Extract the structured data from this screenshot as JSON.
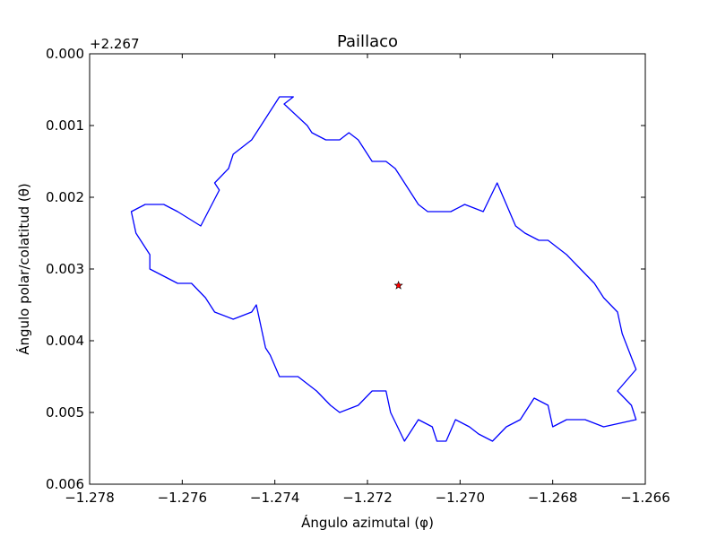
{
  "chart_data": {
    "type": "line",
    "title": "Paillaco",
    "xlabel": "Ángulo azimutal (φ)",
    "ylabel": "Ángulo polar/colatitud (θ)",
    "y_offset_label": "+2.267",
    "xlim": [
      -1.278,
      -1.266
    ],
    "ylim": [
      0.006,
      0.0
    ],
    "y_inverted": true,
    "grid": false,
    "x_ticks": [
      -1.278,
      -1.276,
      -1.274,
      -1.272,
      -1.27,
      -1.268,
      -1.266
    ],
    "x_tick_labels": [
      "−1.278",
      "−1.276",
      "−1.274",
      "−1.272",
      "−1.270",
      "−1.268",
      "−1.266"
    ],
    "y_ticks": [
      0.0,
      0.001,
      0.002,
      0.003,
      0.004,
      0.005,
      0.006
    ],
    "y_tick_labels": [
      "0.000",
      "0.001",
      "0.002",
      "0.003",
      "0.004",
      "0.005",
      "0.006"
    ],
    "series": [
      {
        "kind": "boundary",
        "color": "#0000ff",
        "x": [
          -1.2771,
          -1.2768,
          -1.2764,
          -1.2761,
          -1.2756,
          -1.2752,
          -1.2753,
          -1.275,
          -1.2749,
          -1.2745,
          -1.2743,
          -1.2739,
          -1.2736,
          -1.2738,
          -1.2733,
          -1.2732,
          -1.2729,
          -1.2726,
          -1.2724,
          -1.2722,
          -1.2719,
          -1.2716,
          -1.2714,
          -1.2713,
          -1.2711,
          -1.2709,
          -1.2707,
          -1.2704,
          -1.2702,
          -1.2699,
          -1.2695,
          -1.2692,
          -1.2688,
          -1.2686,
          -1.2683,
          -1.2681,
          -1.2677,
          -1.2674,
          -1.2671,
          -1.2669,
          -1.2666,
          -1.2665,
          -1.2662,
          -1.2666,
          -1.2663,
          -1.2662,
          -1.2669,
          -1.2673,
          -1.2677,
          -1.268,
          -1.2681,
          -1.2684,
          -1.2687,
          -1.269,
          -1.2693,
          -1.2696,
          -1.2698,
          -1.2701,
          -1.2703,
          -1.2705,
          -1.2706,
          -1.2709,
          -1.2712,
          -1.2715,
          -1.2716,
          -1.2719,
          -1.2722,
          -1.2726,
          -1.2728,
          -1.2731,
          -1.2735,
          -1.2739,
          -1.2741,
          -1.2742,
          -1.2744,
          -1.2745,
          -1.2749,
          -1.2753,
          -1.2755,
          -1.2758,
          -1.2761,
          -1.2764,
          -1.2767,
          -1.2767,
          -1.277,
          -1.2771
        ],
        "y": [
          0.0022,
          0.0021,
          0.0021,
          0.0022,
          0.0024,
          0.0019,
          0.0018,
          0.0016,
          0.0014,
          0.0012,
          0.001,
          0.0006,
          0.0006,
          0.0007,
          0.001,
          0.0011,
          0.0012,
          0.0012,
          0.0011,
          0.0012,
          0.0015,
          0.0015,
          0.0016,
          0.0017,
          0.0019,
          0.0021,
          0.0022,
          0.0022,
          0.0022,
          0.0021,
          0.0022,
          0.0018,
          0.0024,
          0.0025,
          0.0026,
          0.0026,
          0.0028,
          0.003,
          0.0032,
          0.0034,
          0.0036,
          0.0039,
          0.0044,
          0.0047,
          0.0049,
          0.0051,
          0.0052,
          0.0051,
          0.0051,
          0.0052,
          0.0049,
          0.0048,
          0.0051,
          0.0052,
          0.0054,
          0.0053,
          0.0052,
          0.0051,
          0.0054,
          0.0054,
          0.0052,
          0.0051,
          0.0054,
          0.005,
          0.0047,
          0.0047,
          0.0049,
          0.005,
          0.0049,
          0.0047,
          0.0045,
          0.0045,
          0.0042,
          0.0041,
          0.0035,
          0.0036,
          0.0037,
          0.0036,
          0.0034,
          0.0032,
          0.0032,
          0.0031,
          0.003,
          0.0028,
          0.0025,
          0.0022
        ]
      },
      {
        "kind": "marker",
        "marker": "star",
        "color": "#ff0000",
        "x": [
          -1.27133
        ],
        "y": [
          0.00323
        ]
      }
    ]
  }
}
